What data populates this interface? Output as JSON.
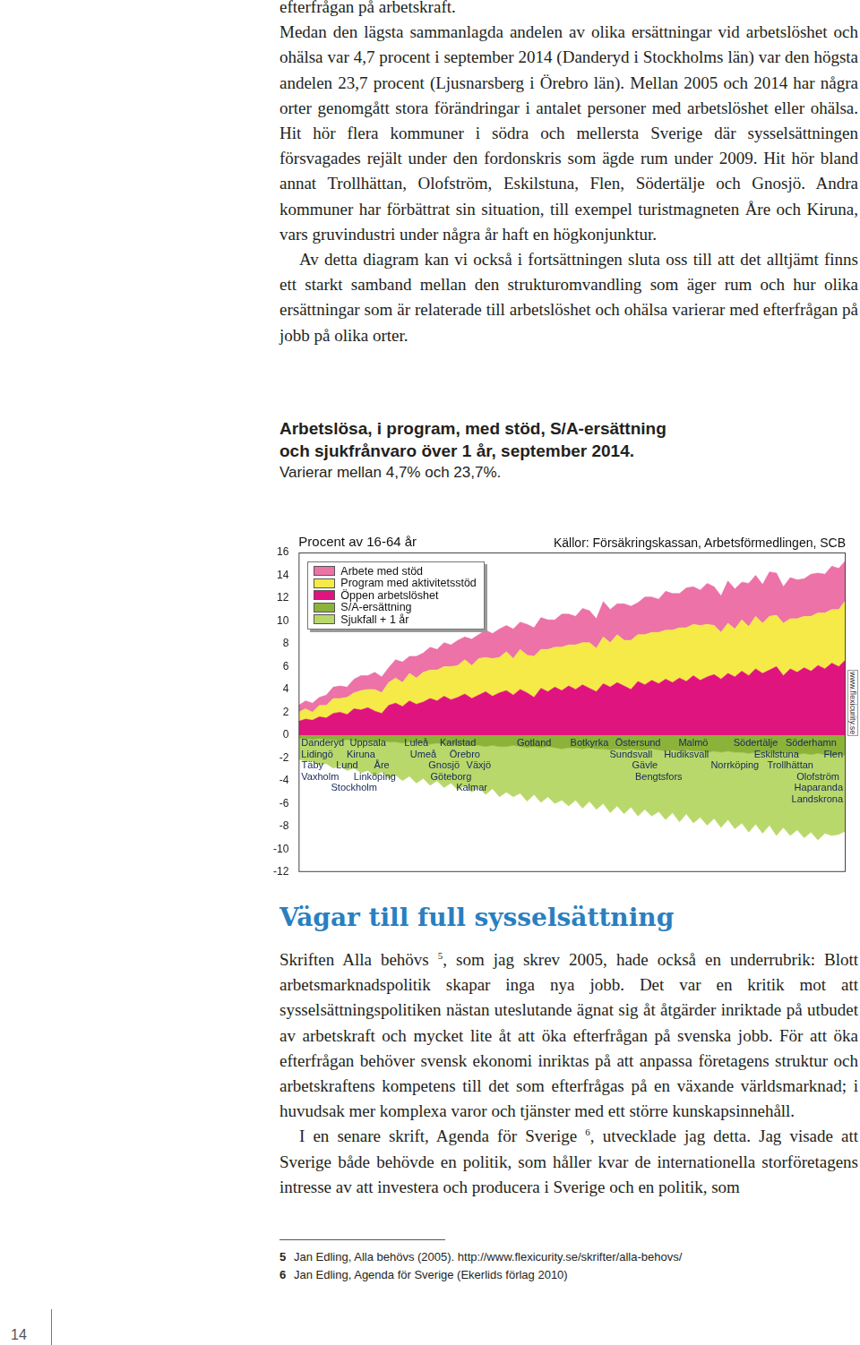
{
  "page": {
    "before_chart": [
      {
        "indent": false,
        "parts": [
          "efterfrågan på arbetskraft."
        ]
      },
      {
        "indent": false,
        "parts": [
          "Medan den lägsta sammanlagda andelen av olika ersättningar vid arbetslöshet och ohälsa var 4,7 procent i september 2014 (Danderyd i Stockholms län) var den högsta andelen 23,7 procent (Ljusnarsberg i Örebro län). Mellan 2005 och 2014 har några orter genomgått stora förändringar i antalet personer med arbetslöshet eller ohälsa. Hit hör flera kommuner i södra och mellersta Sverige där sysselsättningen försvagades rejält under den fordonskris som ägde rum under 2009. Hit hör bland annat Trollhättan, Olofström, Eskilstuna, Flen, Södertälje och Gnosjö. Andra kommuner har förbättrat sin situation, till exempel turistmagneten Åre och Kiruna, vars gruvindustri under några år haft en högkonjunktur."
        ]
      },
      {
        "indent": true,
        "parts": [
          "Av detta diagram kan vi också i fortsättningen sluta oss till att det alltjämt finns ett starkt samband mellan den strukturomvandling som äger rum och hur olika ersättningar som är relaterade till arbetslöshet och ohälsa varierar med efterfrågan på jobb på olika orter."
        ]
      }
    ],
    "heading": "Vägar till full sysselsättning",
    "after_heading": [
      {
        "indent": false,
        "parts": [
          "Skriften Alla behövs ",
          {
            "sup": "5"
          },
          ", som jag skrev 2005, hade också en underrubrik: Blott arbetsmarknadspolitik skapar inga nya jobb. Det var en kritik mot att sysselsättningspolitiken nästan uteslutande ägnat sig åt åtgärder inriktade på utbudet av arbetskraft och mycket lite åt att öka efterfrågan på svenska jobb. För att öka efterfrågan behöver svensk ekonomi inriktas på att anpassa företagens struktur och arbetskraftens kompetens till det som efterfrågas på en växande världsmarknad; i huvudsak mer komplexa varor och tjänster med ett större kunskapsinnehåll."
        ]
      },
      {
        "indent": true,
        "parts": [
          "I en senare skrift, Agenda för Sverige ",
          {
            "sup": "6"
          },
          ", utvecklade jag detta. Jag visade att Sverige både behövde en politik, som håller kvar de internationella storföretagens intresse av att investera och producera i Sverige och en politik, som"
        ]
      }
    ],
    "footnotes": [
      {
        "number": "5",
        "text": "Jan Edling, Alla behövs (2005). http://www.flexicurity.se/skrifter/alla-behovs/"
      },
      {
        "number": "6",
        "text": "Jan Edling, Agenda för Sverige (Ekerlids förlag 2010)"
      }
    ],
    "page_number": "14"
  },
  "chart_data": {
    "type": "area",
    "title": "Arbetslösa, i program, med stöd, S/A-ersättning och sjukfrånvaro över 1 år, september 2014.",
    "subtitle": "Varierar mellan 4,7% och 23,7%.",
    "ylabel": "Procent av 16-64 år",
    "source": "Källor: Försäkringskassan, Arbetsförmedlingen, SCB",
    "credit": "www.flexicurity.se",
    "stacked": true,
    "grid": false,
    "legend": "top-left",
    "tick_labels": "y",
    "ylim": [
      -12,
      16
    ],
    "yticks": [
      -12,
      -10,
      -8,
      -6,
      -4,
      -2,
      0,
      2,
      4,
      6,
      8,
      10,
      12,
      14,
      16
    ],
    "categories": [
      "Danderyd",
      "Lidingö",
      "Täby",
      "Vaxholm",
      null,
      null,
      null,
      "Lund",
      "Stockholm",
      "Kiruna",
      "Uppsala",
      "Linköping",
      "Åre",
      null,
      null,
      null,
      null,
      "Luleå",
      "Umeå",
      null,
      null,
      "Gnosjö",
      "Göteborg",
      "Karlstad",
      "Örebro",
      "Kalmar",
      "Växjö",
      null,
      null,
      null,
      null,
      null,
      null,
      null,
      "Gotland",
      null,
      null,
      null,
      null,
      null,
      null,
      null,
      "Botkyrka",
      null,
      null,
      null,
      null,
      null,
      "Sundsvall",
      "Östersund",
      "Gävle",
      null,
      "Bengtsfors",
      null,
      null,
      null,
      "Hudiksvall",
      "Malmö",
      null,
      null,
      null,
      null,
      null,
      "Norrköping",
      null,
      null,
      "Södertälje",
      null,
      null,
      "Eskilstuna",
      null,
      "Trollhättan",
      null,
      null,
      "Söderhamn",
      "Olofström",
      "Haparanda",
      "Landskrona",
      "Flen",
      null
    ],
    "series": [
      {
        "name": "Arbete med stöd",
        "color": "#ec72a8",
        "values": [
          0.6,
          0.7,
          0.8,
          0.7,
          0.9,
          1.0,
          1.1,
          0.9,
          1.2,
          1.3,
          1.2,
          1.5,
          1.4,
          1.3,
          1.6,
          1.8,
          1.5,
          1.9,
          1.7,
          2.0,
          1.8,
          2.1,
          1.9,
          2.2,
          2.0,
          2.3,
          2.1,
          2.4,
          2.2,
          2.5,
          2.3,
          2.6,
          2.4,
          2.7,
          2.5,
          2.8,
          2.6,
          2.4,
          2.9,
          2.7,
          2.5,
          3.0,
          2.8,
          2.6,
          3.1,
          2.9,
          2.7,
          3.2,
          3.0,
          2.8,
          3.3,
          3.1,
          2.9,
          3.4,
          3.2,
          3.0,
          3.5,
          3.3,
          3.1,
          3.6,
          3.4,
          3.2,
          3.7,
          3.5,
          3.3,
          3.8,
          3.6,
          3.4,
          3.9,
          3.7,
          3.2,
          3.6,
          3.4,
          3.3,
          3.7,
          3.5,
          3.4,
          3.8,
          3.6,
          3.5
        ]
      },
      {
        "name": "Program med aktivitetsstöd",
        "color": "#f6ea48",
        "values": [
          0.8,
          0.9,
          0.7,
          1.0,
          1.1,
          1.3,
          1.2,
          1.5,
          1.4,
          1.7,
          1.6,
          1.9,
          1.8,
          2.0,
          2.2,
          2.1,
          2.4,
          2.3,
          2.6,
          2.5,
          2.7,
          2.6,
          2.9,
          2.8,
          3.0,
          2.9,
          3.2,
          3.0,
          3.3,
          3.1,
          3.4,
          3.2,
          3.5,
          3.3,
          3.6,
          3.4,
          3.7,
          3.5,
          3.8,
          3.6,
          3.9,
          3.7,
          4.0,
          3.8,
          4.1,
          3.9,
          4.2,
          4.0,
          4.3,
          4.1,
          4.4,
          4.2,
          4.5,
          4.3,
          4.6,
          4.4,
          4.7,
          4.5,
          4.8,
          4.6,
          4.3,
          4.1,
          4.4,
          4.2,
          4.5,
          4.3,
          4.6,
          4.4,
          4.7,
          4.5,
          4.6,
          4.4,
          4.7,
          4.5,
          4.8,
          4.6,
          4.9,
          4.7,
          5.0,
          5.2
        ]
      },
      {
        "name": "Öppen arbetslöshet",
        "color": "#e0147e",
        "values": [
          1.2,
          1.4,
          1.3,
          1.6,
          1.5,
          1.9,
          2.0,
          1.8,
          2.3,
          2.2,
          2.4,
          2.1,
          1.9,
          2.6,
          2.8,
          2.5,
          3.0,
          2.7,
          2.9,
          3.2,
          3.0,
          3.4,
          3.1,
          3.3,
          3.6,
          3.2,
          3.5,
          3.8,
          3.4,
          3.7,
          3.9,
          3.5,
          4.0,
          3.7,
          3.3,
          4.1,
          3.8,
          4.2,
          3.9,
          4.3,
          4.0,
          4.4,
          4.1,
          3.8,
          4.5,
          4.2,
          4.6,
          4.3,
          4.0,
          4.7,
          4.4,
          4.8,
          4.5,
          4.9,
          4.6,
          5.0,
          4.7,
          5.2,
          4.8,
          5.1,
          5.3,
          4.9,
          5.4,
          5.1,
          5.6,
          5.2,
          5.8,
          5.4,
          5.7,
          6.0,
          5.2,
          5.8,
          5.5,
          5.9,
          5.6,
          6.1,
          5.8,
          6.3,
          6.0,
          6.6
        ]
      },
      {
        "name": "S/A-ersättning",
        "color": "#8db23a",
        "values": [
          -0.3,
          -0.3,
          -0.4,
          -0.3,
          -0.4,
          -0.4,
          -0.5,
          -0.4,
          -0.5,
          -0.5,
          -0.5,
          -0.6,
          -0.5,
          -0.6,
          -0.6,
          -0.7,
          -0.6,
          -0.7,
          -0.7,
          -0.8,
          -0.7,
          -0.8,
          -0.8,
          -0.9,
          -0.8,
          -0.9,
          -0.9,
          -1.0,
          -0.9,
          -1.0,
          -1.0,
          -0.9,
          -1.0,
          -1.1,
          -1.0,
          -1.1,
          -1.0,
          -1.1,
          -1.2,
          -1.1,
          -1.1,
          -1.2,
          -1.1,
          -1.2,
          -1.2,
          -1.3,
          -1.2,
          -1.3,
          -1.2,
          -1.3,
          -1.3,
          -1.2,
          -1.3,
          -1.4,
          -1.3,
          -1.4,
          -1.3,
          -1.4,
          -1.4,
          -1.5,
          -1.4,
          -1.5,
          -1.4,
          -1.5,
          -1.5,
          -1.6,
          -1.5,
          -1.6,
          -1.5,
          -1.6,
          -1.6,
          -1.5,
          -1.7,
          -1.6,
          -1.7,
          -1.6,
          -1.7,
          -1.8,
          -1.7,
          -1.8
        ]
      },
      {
        "name": "Sjukfall + 1 år",
        "color": "#b9d86b",
        "values": [
          -1.8,
          -2.0,
          -1.9,
          -2.3,
          -2.1,
          -2.5,
          -2.2,
          -2.7,
          -2.4,
          -2.8,
          -2.6,
          -3.0,
          -2.7,
          -3.2,
          -2.9,
          -3.3,
          -3.0,
          -3.5,
          -3.1,
          -3.6,
          -3.3,
          -3.8,
          -3.4,
          -3.9,
          -3.6,
          -4.1,
          -3.7,
          -4.2,
          -3.8,
          -4.4,
          -4.0,
          -4.5,
          -4.1,
          -4.7,
          -4.2,
          -4.8,
          -4.4,
          -4.9,
          -4.5,
          -5.1,
          -4.6,
          -5.2,
          -4.7,
          -5.3,
          -4.8,
          -5.5,
          -5.0,
          -5.6,
          -5.1,
          -5.8,
          -5.2,
          -5.9,
          -5.4,
          -6.0,
          -5.5,
          -6.2,
          -5.6,
          -6.3,
          -5.8,
          -6.4,
          -5.9,
          -6.6,
          -6.0,
          -6.7,
          -6.2,
          -6.9,
          -6.3,
          -7.0,
          -6.4,
          -7.2,
          -6.5,
          -7.3,
          -6.6,
          -7.4,
          -6.8,
          -7.6,
          -6.9,
          -7.0,
          -7.0,
          -6.6
        ]
      }
    ]
  }
}
